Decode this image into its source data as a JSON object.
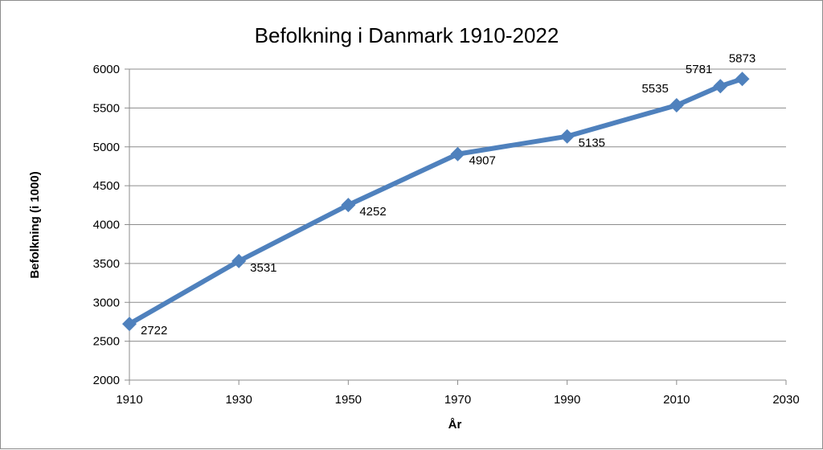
{
  "chart_data": {
    "type": "line",
    "title": "Befolkning i Danmark 1910-2022",
    "xlabel": "År",
    "ylabel": "Befolkning (i 1000)",
    "xlim": [
      1910,
      2030
    ],
    "ylim": [
      2000,
      6000
    ],
    "x_ticks": [
      1910,
      1930,
      1950,
      1970,
      1990,
      2010,
      2030
    ],
    "y_ticks": [
      2000,
      2500,
      3000,
      3500,
      4000,
      4500,
      5000,
      5500,
      6000
    ],
    "grid": "horizontal",
    "legend": "none",
    "series": [
      {
        "color": "#4f81bd",
        "marker": "diamond",
        "x": [
          1910,
          1930,
          1950,
          1970,
          1990,
          2010,
          2018,
          2022
        ],
        "y": [
          2722,
          3531,
          4252,
          4907,
          5135,
          5535,
          5781,
          5873
        ]
      }
    ]
  }
}
